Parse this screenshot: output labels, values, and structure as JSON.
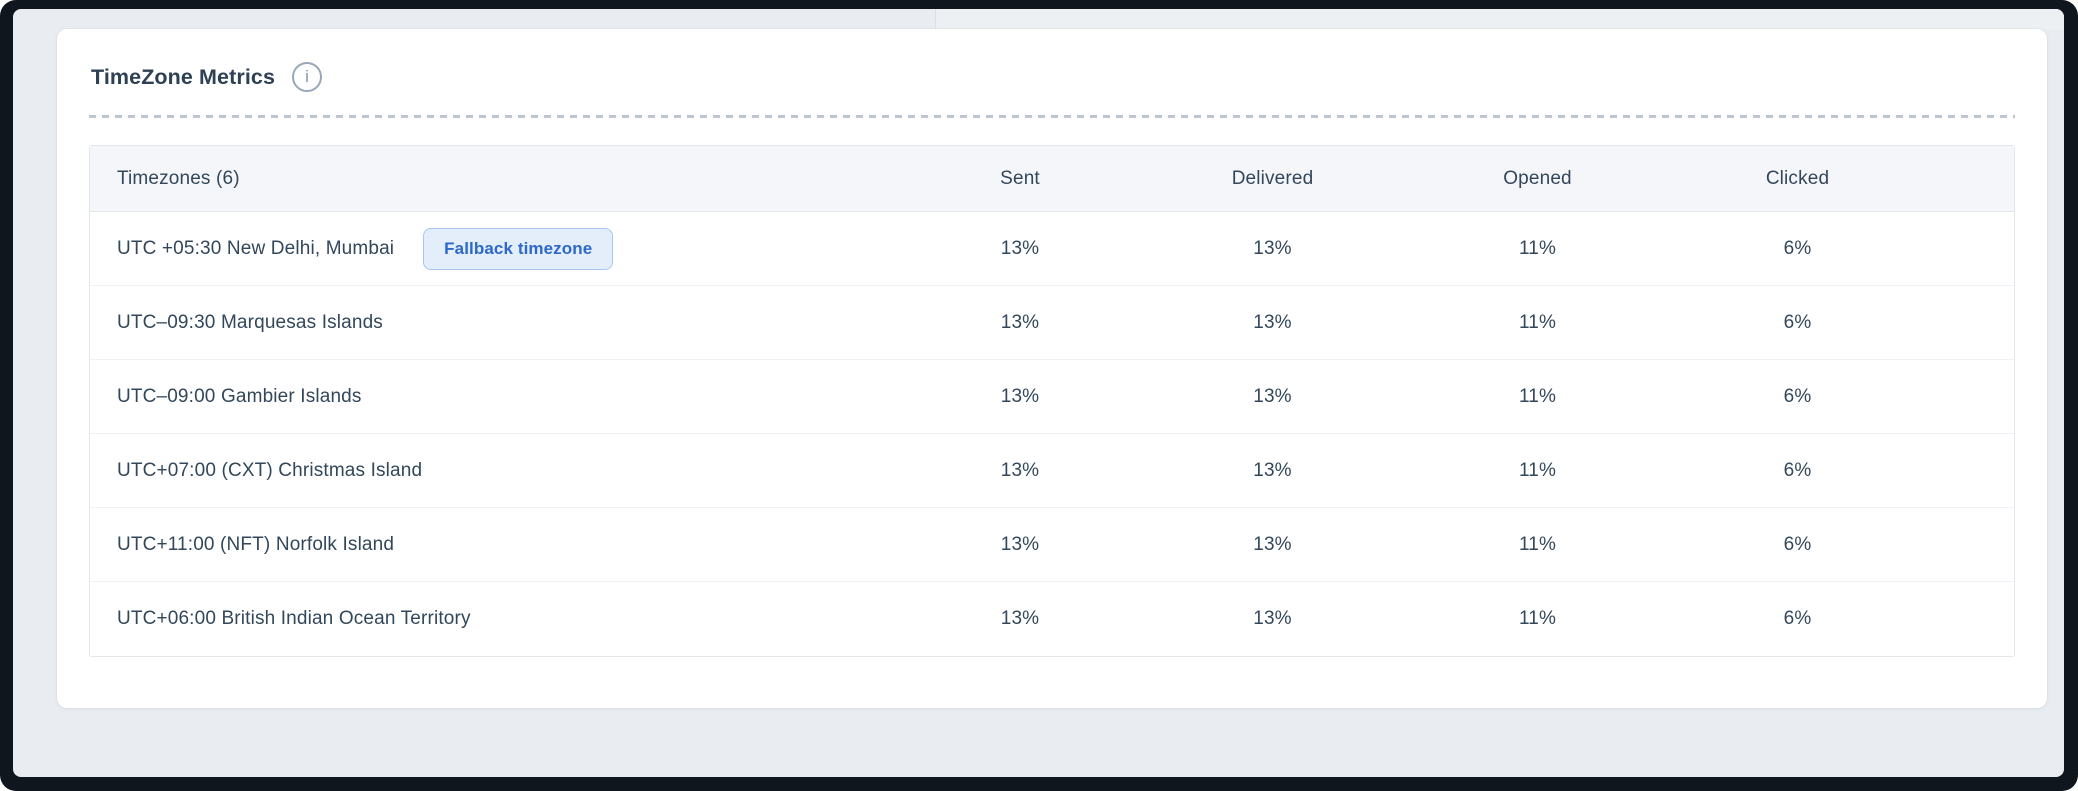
{
  "card": {
    "title": "TimeZone Metrics",
    "info_glyph": "i"
  },
  "table": {
    "columns": [
      "Timezones (6)",
      "Sent",
      "Delivered",
      "Opened",
      "Clicked"
    ],
    "rows": [
      {
        "timezone": "UTC +05:30 New Delhi, Mumbai",
        "badge": "Fallback timezone",
        "sent": "13%",
        "delivered": "13%",
        "opened": "11%",
        "clicked": "6%"
      },
      {
        "timezone": "UTC–09:30 Marquesas Islands",
        "sent": "13%",
        "delivered": "13%",
        "opened": "11%",
        "clicked": "6%"
      },
      {
        "timezone": "UTC–09:00 Gambier Islands",
        "sent": "13%",
        "delivered": "13%",
        "opened": "11%",
        "clicked": "6%"
      },
      {
        "timezone": "UTC+07:00 (CXT) Christmas Island",
        "sent": "13%",
        "delivered": "13%",
        "opened": "11%",
        "clicked": "6%"
      },
      {
        "timezone": "UTC+11:00 (NFT) Norfolk Island",
        "sent": "13%",
        "delivered": "13%",
        "opened": "11%",
        "clicked": "6%"
      },
      {
        "timezone": "UTC+06:00 British Indian Ocean Territory",
        "sent": "13%",
        "delivered": "13%",
        "opened": "11%",
        "clicked": "6%"
      }
    ]
  },
  "colors": {
    "title_text": "#2e4053",
    "body_text": "#33475b",
    "badge_text": "#2d68cb",
    "badge_bg": "#e4eefb",
    "badge_border": "#a6c6ef",
    "table_header_bg": "#f5f6f9",
    "table_border": "#e2e7ec",
    "row_divider": "#eef1f5",
    "page_bg": "#e9edf1",
    "frame": "#10161e",
    "dashed_divider": "#bcc6d2",
    "info_icon": "#97a8ba"
  }
}
